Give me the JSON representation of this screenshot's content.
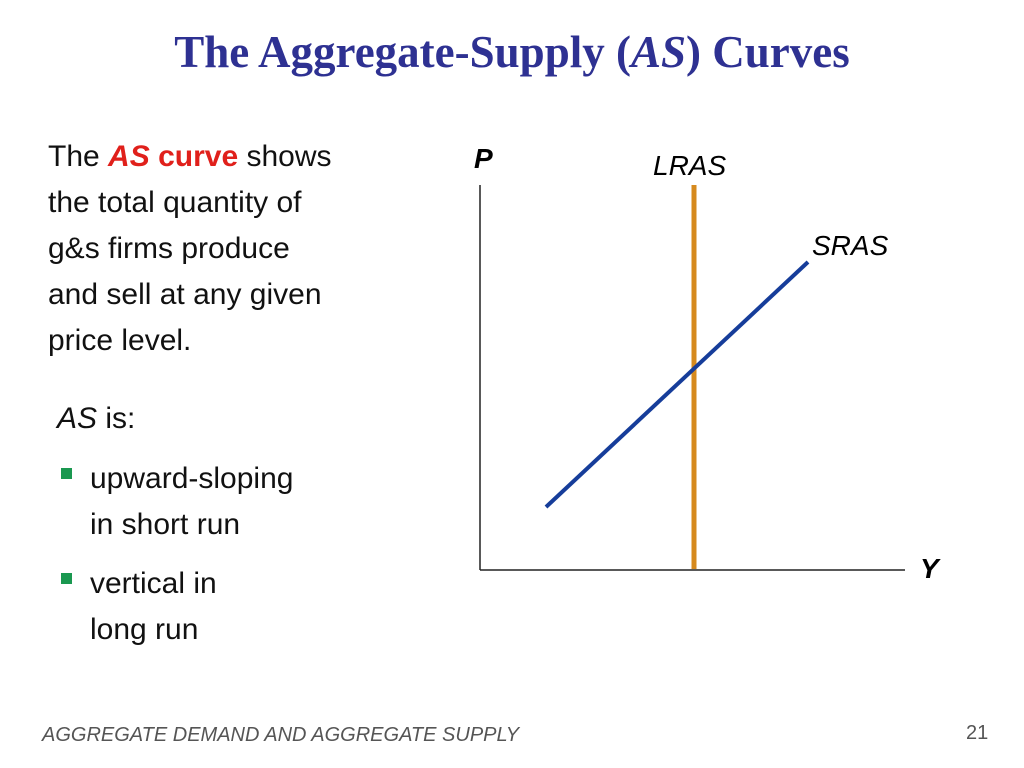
{
  "title": {
    "before": "The Aggregate-Supply (",
    "italic": "AS",
    "after": ") Curves"
  },
  "definition": {
    "first_line": {
      "the": "The",
      "as": "AS",
      "curve": "curve",
      "shows": "shows"
    },
    "lines": [
      "the total quantity of",
      "g&s firms produce",
      "and sell at any given",
      "price level."
    ]
  },
  "as_is": {
    "as": "AS",
    "is": "is:"
  },
  "bullets": [
    {
      "lines": [
        "upward-sloping",
        "in short run"
      ]
    },
    {
      "lines": [
        "vertical in",
        "long run"
      ]
    }
  ],
  "diagram": {
    "y_axis_label": "P",
    "x_axis_label": "Y",
    "lras_label": "LRAS",
    "sras_label": "SRAS"
  },
  "footer": {
    "text": "AGGREGATE DEMAND AND AGGREGATE SUPPLY",
    "page_number": "21"
  }
}
